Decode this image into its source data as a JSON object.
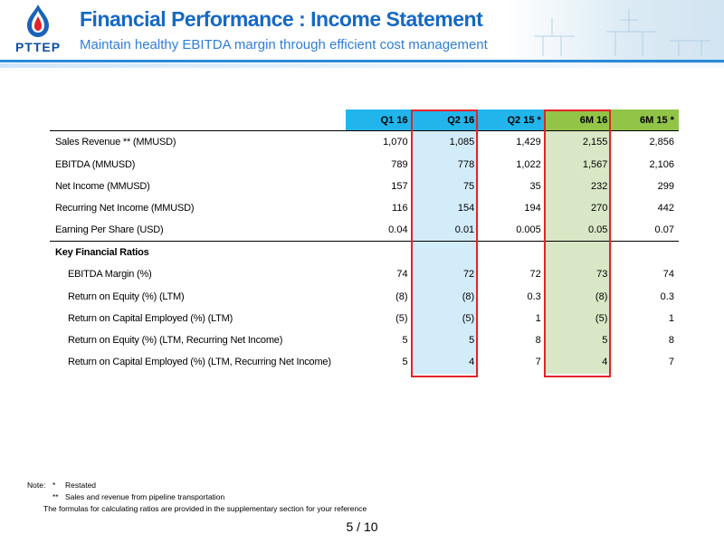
{
  "header": {
    "logo_text": "PTTEP",
    "title": "Financial Performance : Income Statement",
    "subtitle": "Maintain healthy EBITDA margin through efficient cost management"
  },
  "table": {
    "columns": [
      "Q1 16",
      "Q2 16",
      "Q2 15 *",
      "6M 16",
      "6M 15 *"
    ],
    "rows": [
      {
        "label": "Sales Revenue ** (MMUSD)",
        "values": [
          "1,070",
          "1,085",
          "1,429",
          "2,155",
          "2,856"
        ]
      },
      {
        "label": "EBITDA (MMUSD)",
        "values": [
          "789",
          "778",
          "1,022",
          "1,567",
          "2,106"
        ]
      },
      {
        "label": "Net Income (MMUSD)",
        "values": [
          "157",
          "75",
          "35",
          "232",
          "299"
        ]
      },
      {
        "label": "Recurring Net Income (MMUSD)",
        "values": [
          "116",
          "154",
          "194",
          "270",
          "442"
        ]
      },
      {
        "label": "Earning Per Share (USD)",
        "values": [
          "0.04",
          "0.01",
          "0.005",
          "0.05",
          "0.07"
        ]
      }
    ],
    "ratios_heading": "Key Financial Ratios",
    "ratios": [
      {
        "label": "EBITDA Margin (%)",
        "values": [
          "74",
          "72",
          "72",
          "73",
          "74"
        ]
      },
      {
        "label": "Return on Equity (%) (LTM)",
        "values": [
          "(8)",
          "(8)",
          "0.3",
          "(8)",
          "0.3"
        ]
      },
      {
        "label": "Return on Capital Employed (%) (LTM)",
        "values": [
          "(5)",
          "(5)",
          "1",
          "(5)",
          "1"
        ]
      },
      {
        "label": "Return on Equity (%) (LTM, Recurring Net Income)",
        "values": [
          "5",
          "5",
          "8",
          "5",
          "8"
        ]
      },
      {
        "label": "Return on Capital Employed (%) (LTM, Recurring Net Income)",
        "values": [
          "5",
          "4",
          "7",
          "4",
          "7"
        ]
      }
    ]
  },
  "notes": {
    "prefix": "Note:",
    "items": [
      {
        "mark": "*",
        "text": "Restated"
      },
      {
        "mark": "**",
        "text": "Sales and revenue from pipeline transportation"
      }
    ],
    "footer": "The formulas for calculating ratios are provided in the supplementary section for your reference"
  },
  "page": "5 / 10",
  "colors": {
    "title_blue": "#1569c4",
    "header_blue": "#22b5ec",
    "header_green": "#92c447",
    "highlight_red": "#e2242a"
  }
}
